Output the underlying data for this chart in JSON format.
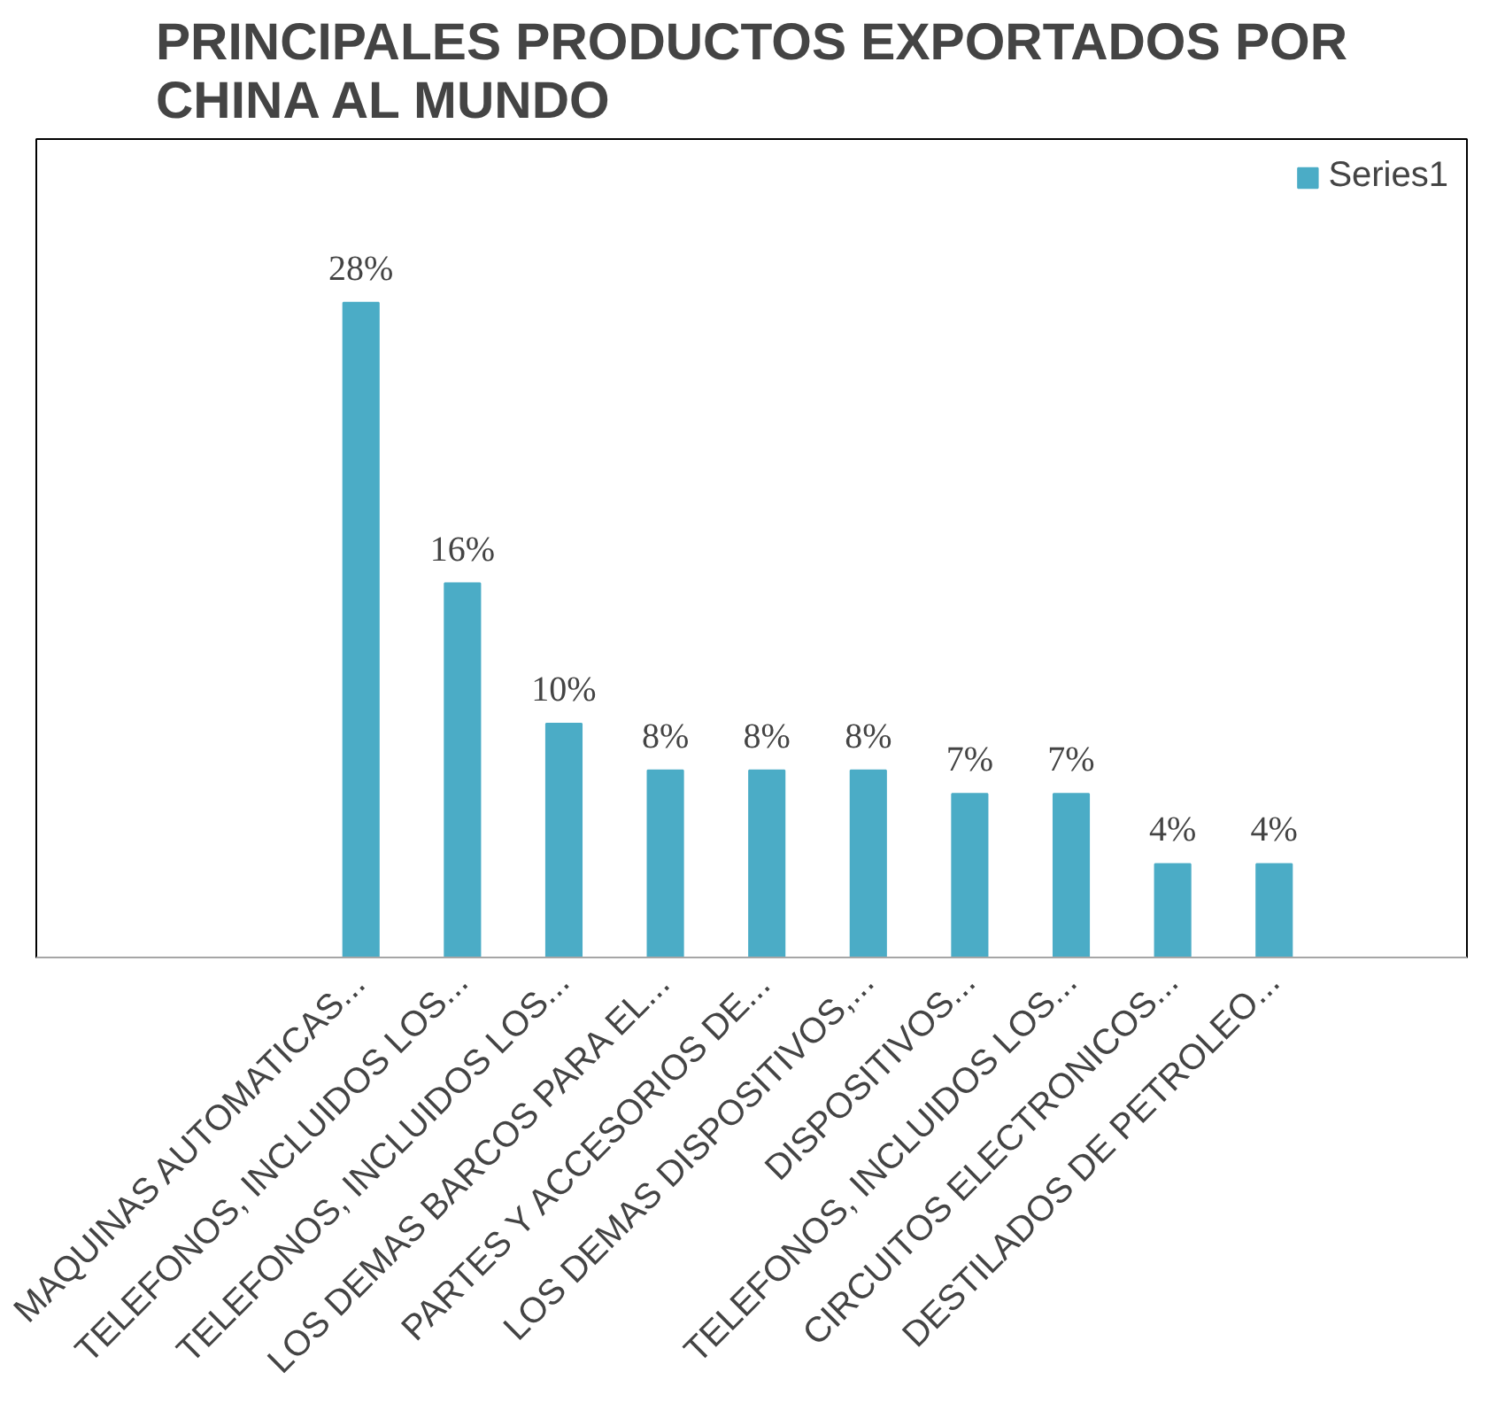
{
  "chart_data": {
    "type": "bar",
    "title": "PRINCIPALES PRODUCTOS EXPORTADOS POR\nCHINA AL MUNDO",
    "categories": [
      "MAQUINAS AUTOMATICAS...",
      "TELEFONOS, INCLUIDOS LOS...",
      "TELEFONOS, INCLUIDOS LOS...",
      "LOS DEMAS BARCOS PARA EL...",
      "PARTES Y ACCESORIOS DE...",
      "LOS DEMAS DISPOSITIVOS,...",
      "DISPOSITIVOS...",
      "TELEFONOS, INCLUIDOS LOS...",
      "CIRCUITOS ELECTRONICOS...",
      "DESTILADOS DE PETROLEO..."
    ],
    "series": [
      {
        "name": "Series1",
        "color": "#4bacc6",
        "values": [
          28,
          16,
          10,
          8,
          8,
          8,
          7,
          7,
          4,
          4
        ],
        "value_labels": [
          "28%",
          "16%",
          "10%",
          "8%",
          "8%",
          "8%",
          "7%",
          "7%",
          "4%",
          "4%"
        ]
      }
    ],
    "legend": "top right",
    "grid": false
  }
}
